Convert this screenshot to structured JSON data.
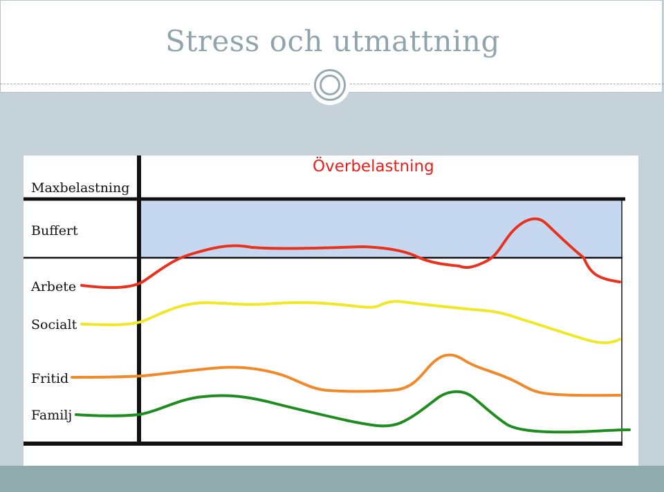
{
  "slide": {
    "title": "Stress och utmattning"
  },
  "diagram": {
    "overload_label": "Överbelastning",
    "levels": {
      "max": "Maxbelastning",
      "buffer": "Buffert"
    },
    "lines": [
      {
        "label": "Arbete",
        "color": "#e8321e"
      },
      {
        "label": "Socialt",
        "color": "#f0e827"
      },
      {
        "label": "Fritid",
        "color": "#f0892a"
      },
      {
        "label": "Familj",
        "color": "#1e8c1e"
      }
    ],
    "colors": {
      "buffer_fill": "#c6d8ef",
      "axes": "#111111",
      "overload_text": "#e8201c"
    }
  }
}
